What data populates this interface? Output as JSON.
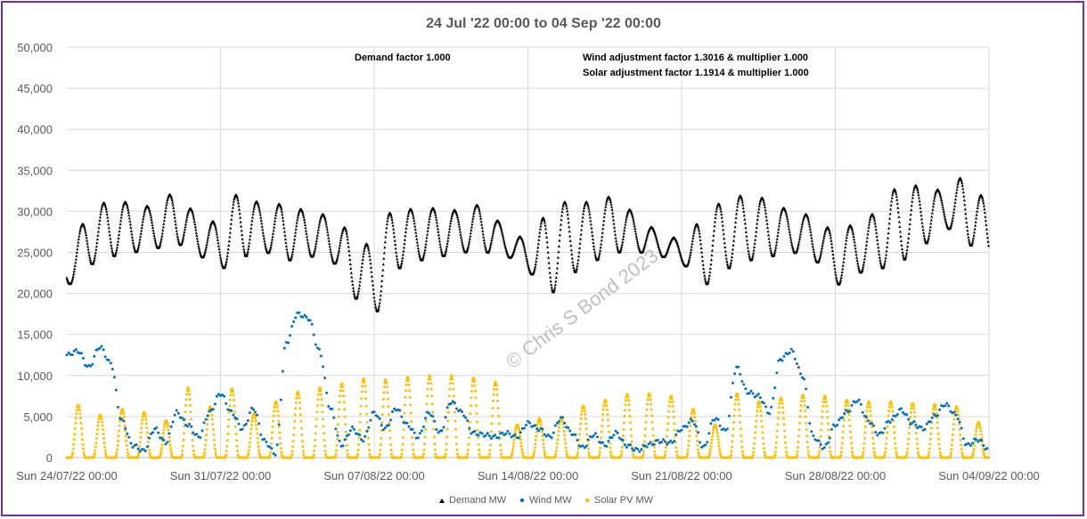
{
  "chart_data": {
    "type": "scatter",
    "title": "24 Jul '22 00:00 to 04 Sep '22 00:00",
    "xlabel": "",
    "ylabel": "",
    "ylim": [
      0,
      50000
    ],
    "yticks": [
      "0",
      "5,000",
      "10,000",
      "15,000",
      "20,000",
      "25,000",
      "30,000",
      "35,000",
      "40,000",
      "45,000",
      "50,000"
    ],
    "yticks_values": [
      0,
      5000,
      10000,
      15000,
      20000,
      25000,
      30000,
      35000,
      40000,
      45000,
      50000
    ],
    "xlim": [
      "2022-07-24 00:00",
      "2022-09-04 00:00"
    ],
    "xticks": [
      "Sun 24/07/22 00:00",
      "Sun 31/07/22 00:00",
      "Sun 07/08/22 00:00",
      "Sun 14/08/22 00:00",
      "Sun 21/08/22 00:00",
      "Sun 28/08/22 00:00",
      "Sun 04/09/22 00:00"
    ],
    "grid": true,
    "legend_position": "bottom",
    "annotations": [
      "Demand factor 1.000",
      "Wind adjustment factor 1.3016 & multiplier 1.000",
      "Solar adjustment factor 1.1914 & multiplier 1.000"
    ],
    "watermark": "© Chris S Bond  2023",
    "series": [
      {
        "name": "Demand MW",
        "color": "#000000",
        "marker": "triangle",
        "x": [
          "2022-07-24",
          "2022-07-25",
          "2022-07-26",
          "2022-07-27",
          "2022-07-28",
          "2022-07-29",
          "2022-07-30",
          "2022-07-31",
          "2022-08-01",
          "2022-08-02",
          "2022-08-03",
          "2022-08-04",
          "2022-08-05",
          "2022-08-06",
          "2022-08-07",
          "2022-08-08",
          "2022-08-09",
          "2022-08-10",
          "2022-08-11",
          "2022-08-12",
          "2022-08-13",
          "2022-08-14",
          "2022-08-15",
          "2022-08-16",
          "2022-08-17",
          "2022-08-18",
          "2022-08-19",
          "2022-08-20",
          "2022-08-21",
          "2022-08-22",
          "2022-08-23",
          "2022-08-24",
          "2022-08-25",
          "2022-08-26",
          "2022-08-27",
          "2022-08-28",
          "2022-08-29",
          "2022-08-30",
          "2022-08-31",
          "2022-09-01",
          "2022-09-02",
          "2022-09-03",
          "2022-09-04"
        ],
        "daily_min": [
          21000,
          23500,
          24500,
          25000,
          25500,
          26000,
          24500,
          23000,
          24500,
          25000,
          24000,
          24500,
          24000,
          19500,
          17500,
          23000,
          24000,
          24500,
          25000,
          25000,
          24500,
          22500,
          20000,
          22500,
          24000,
          25000,
          25000,
          24500,
          23500,
          21000,
          23000,
          24000,
          24500,
          25000,
          24000,
          21000,
          22500,
          23000,
          24000,
          26000,
          28000,
          26000,
          23500
        ],
        "daily_max": [
          24500,
          29500,
          31500,
          31000,
          30500,
          32500,
          29500,
          28500,
          33000,
          30500,
          31000,
          30000,
          29500,
          27500,
          25500,
          31000,
          30000,
          30500,
          30000,
          31000,
          28000,
          26500,
          30000,
          31500,
          31000,
          32000,
          29500,
          27500,
          26500,
          29000,
          31500,
          32000,
          31500,
          30000,
          29500,
          27500,
          28500,
          30000,
          33500,
          33000,
          32500,
          34500,
          31000
        ]
      },
      {
        "name": "Wind MW",
        "color": "#0070c0",
        "marker": "circle",
        "x": [
          "2022-07-24",
          "2022-07-24 12:00",
          "2022-07-25",
          "2022-07-25 12:00",
          "2022-07-26",
          "2022-07-26 12:00",
          "2022-07-27",
          "2022-07-27 12:00",
          "2022-07-28",
          "2022-07-28 12:00",
          "2022-07-29",
          "2022-07-29 12:00",
          "2022-07-30",
          "2022-07-30 12:00",
          "2022-07-31",
          "2022-07-31 12:00",
          "2022-08-01",
          "2022-08-01 12:00",
          "2022-08-02",
          "2022-08-02 12:00",
          "2022-08-03",
          "2022-08-03 12:00",
          "2022-08-04",
          "2022-08-04 12:00",
          "2022-08-05",
          "2022-08-05 12:00",
          "2022-08-06",
          "2022-08-06 12:00",
          "2022-08-07",
          "2022-08-07 12:00",
          "2022-08-08",
          "2022-08-08 12:00",
          "2022-08-09",
          "2022-08-09 12:00",
          "2022-08-10",
          "2022-08-10 12:00",
          "2022-08-11",
          "2022-08-11 12:00",
          "2022-08-12",
          "2022-08-12 12:00",
          "2022-08-13",
          "2022-08-13 12:00",
          "2022-08-14",
          "2022-08-14 12:00",
          "2022-08-15",
          "2022-08-15 12:00",
          "2022-08-16",
          "2022-08-16 12:00",
          "2022-08-17",
          "2022-08-17 12:00",
          "2022-08-18",
          "2022-08-18 12:00",
          "2022-08-19",
          "2022-08-19 12:00",
          "2022-08-20",
          "2022-08-20 12:00",
          "2022-08-21",
          "2022-08-21 12:00",
          "2022-08-22",
          "2022-08-22 12:00",
          "2022-08-23",
          "2022-08-23 12:00",
          "2022-08-24",
          "2022-08-24 12:00",
          "2022-08-25",
          "2022-08-25 12:00",
          "2022-08-26",
          "2022-08-26 12:00",
          "2022-08-27",
          "2022-08-27 12:00",
          "2022-08-28",
          "2022-08-28 12:00",
          "2022-08-29",
          "2022-08-29 12:00",
          "2022-08-30",
          "2022-08-30 12:00",
          "2022-08-31",
          "2022-08-31 12:00",
          "2022-09-01",
          "2022-09-01 12:00",
          "2022-09-02",
          "2022-09-02 12:00",
          "2022-09-03",
          "2022-09-03 12:00",
          "2022-09-04"
        ],
        "values": [
          12500,
          13000,
          11000,
          13500,
          11500,
          4500,
          1500,
          800,
          3500,
          1800,
          5500,
          4000,
          2500,
          5500,
          7800,
          5500,
          3500,
          6000,
          2000,
          500,
          14000,
          17500,
          17000,
          13000,
          6000,
          1500,
          3500,
          2200,
          5500,
          3500,
          6000,
          4000,
          2500,
          5500,
          3000,
          6800,
          5500,
          3000,
          2800,
          2500,
          3000,
          2500,
          4200,
          3500,
          2500,
          4800,
          3000,
          1200,
          2800,
          1500,
          3000,
          1500,
          900,
          1600,
          2000,
          1800,
          3500,
          4500,
          1200,
          4800,
          3200,
          11000,
          8000,
          7500,
          5500,
          12000,
          13000,
          10000,
          2500,
          1200,
          4000,
          5500,
          7000,
          4500,
          2800,
          4500,
          5800,
          4200,
          3500,
          5000,
          6500,
          5200,
          1500,
          2200,
          900
        ]
      },
      {
        "name": "Solar PV MW",
        "color": "#ffc000",
        "marker": "circle",
        "daily_peaks": [
          6400,
          5200,
          5900,
          5500,
          4500,
          8500,
          6200,
          8400,
          5300,
          6800,
          8000,
          8500,
          9000,
          9600,
          9500,
          9800,
          10000,
          10000,
          9700,
          9200,
          4000,
          4800,
          4900,
          6300,
          7000,
          7700,
          7800,
          7500,
          5900,
          4000,
          7800,
          6800,
          7300,
          7600,
          7500,
          7000,
          6800,
          6800,
          6600,
          6500,
          6200,
          4300
        ]
      }
    ]
  }
}
